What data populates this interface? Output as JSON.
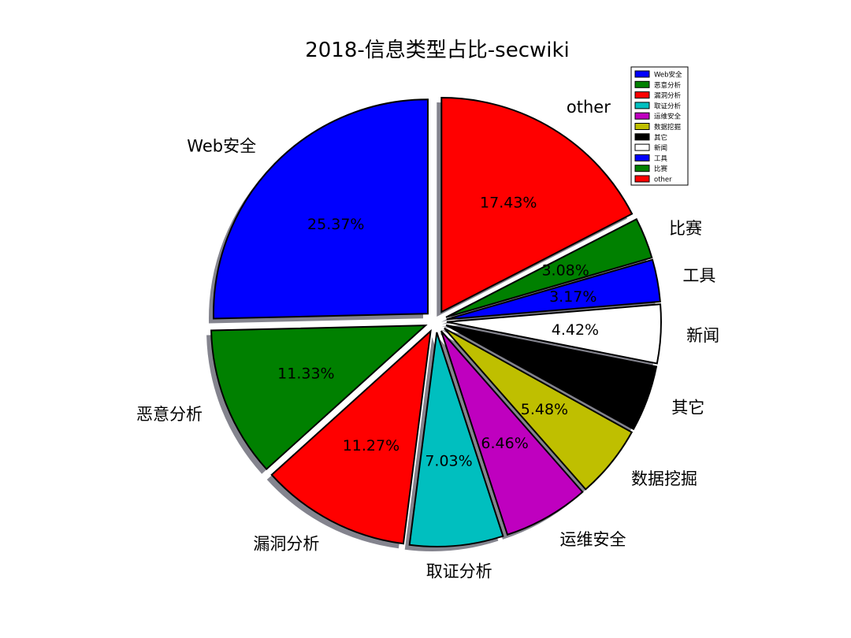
{
  "chart_data": {
    "type": "pie",
    "title": "2018-信息类型占比-secwiki",
    "legend_position": "top-right",
    "slices": [
      {
        "label": "Web安全",
        "value": 25.37,
        "pct_label": "25.37%",
        "color": "#0000ff"
      },
      {
        "label": "恶意分析",
        "value": 11.33,
        "pct_label": "11.33%",
        "color": "#008000"
      },
      {
        "label": "漏洞分析",
        "value": 11.27,
        "pct_label": "11.27%",
        "color": "#ff0000"
      },
      {
        "label": "取证分析",
        "value": 7.03,
        "pct_label": "7.03%",
        "color": "#00bfbf"
      },
      {
        "label": "运维安全",
        "value": 6.46,
        "pct_label": "6.46%",
        "color": "#bf00bf"
      },
      {
        "label": "数据挖掘",
        "value": 5.48,
        "pct_label": "5.48%",
        "color": "#bfbf00"
      },
      {
        "label": "其它",
        "value": 4.96,
        "pct_label": "",
        "color": "#000000"
      },
      {
        "label": "新闻",
        "value": 4.42,
        "pct_label": "4.42%",
        "color": "#ffffff"
      },
      {
        "label": "工具",
        "value": 3.17,
        "pct_label": "3.17%",
        "color": "#0000ff"
      },
      {
        "label": "比赛",
        "value": 3.08,
        "pct_label": "3.08%",
        "color": "#008000"
      },
      {
        "label": "other",
        "value": 17.43,
        "pct_label": "17.43%",
        "color": "#ff0000"
      }
    ]
  }
}
